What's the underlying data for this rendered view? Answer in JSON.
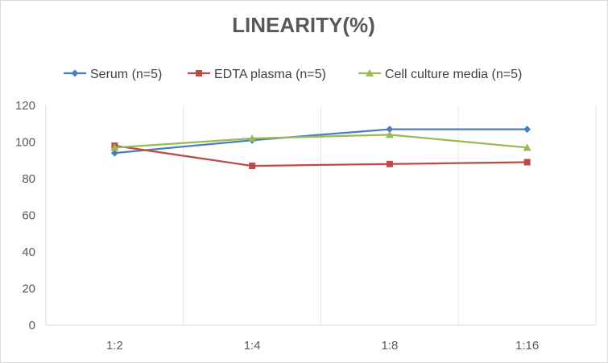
{
  "chart_data": {
    "type": "line",
    "title": "LINEARITY(%)",
    "categories": [
      "1:2",
      "1:4",
      "1:8",
      "1:16"
    ],
    "ylim": [
      0,
      120
    ],
    "yticks": [
      0,
      20,
      40,
      60,
      80,
      100,
      120
    ],
    "grid": "vertical",
    "legend_position": "top",
    "series": [
      {
        "name": "Serum (n=5)",
        "values": [
          94,
          101,
          107,
          107
        ],
        "color": "#4a7ebb",
        "marker": "diamond"
      },
      {
        "name": "EDTA plasma (n=5)",
        "values": [
          98,
          87,
          88,
          89
        ],
        "color": "#be4b48",
        "marker": "square"
      },
      {
        "name": "Cell culture media (n=5)",
        "values": [
          97,
          102,
          104,
          97
        ],
        "color": "#98b954",
        "marker": "triangle"
      }
    ]
  }
}
